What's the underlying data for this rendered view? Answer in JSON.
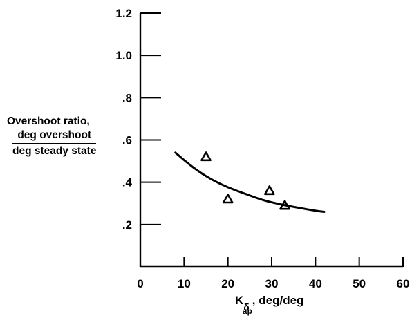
{
  "chart_data": {
    "type": "scatter",
    "title": "",
    "ylabel": {
      "line1": "Overshoot ratio,",
      "numerator": "deg overshoot",
      "denominator": "deg steady state"
    },
    "xlabel": {
      "symbol": "K",
      "sub": "δ",
      "subsub": "ap",
      "units": ",  deg/deg"
    },
    "xlim": [
      0,
      60
    ],
    "ylim": [
      0,
      1.2
    ],
    "x_ticks": [
      0,
      10,
      20,
      30,
      40,
      50,
      60
    ],
    "x_tick_labels": [
      "0",
      "10",
      "20",
      "30",
      "40",
      "50",
      "60"
    ],
    "y_ticks": [
      0.2,
      0.4,
      0.6,
      0.8,
      1.0,
      1.2
    ],
    "y_tick_labels": [
      ".2",
      ".4",
      ".6",
      ".8",
      "1.0",
      "1.2"
    ],
    "grid": false,
    "series": [
      {
        "kind": "points",
        "marker": "triangle",
        "x": [
          15,
          20,
          29.5,
          33
        ],
        "y": [
          0.52,
          0.32,
          0.36,
          0.29
        ]
      },
      {
        "kind": "curve",
        "x": [
          8,
          12,
          16,
          20,
          24,
          28,
          32,
          36,
          40,
          42
        ],
        "y": [
          0.54,
          0.47,
          0.415,
          0.375,
          0.345,
          0.315,
          0.295,
          0.28,
          0.265,
          0.26
        ]
      }
    ]
  }
}
